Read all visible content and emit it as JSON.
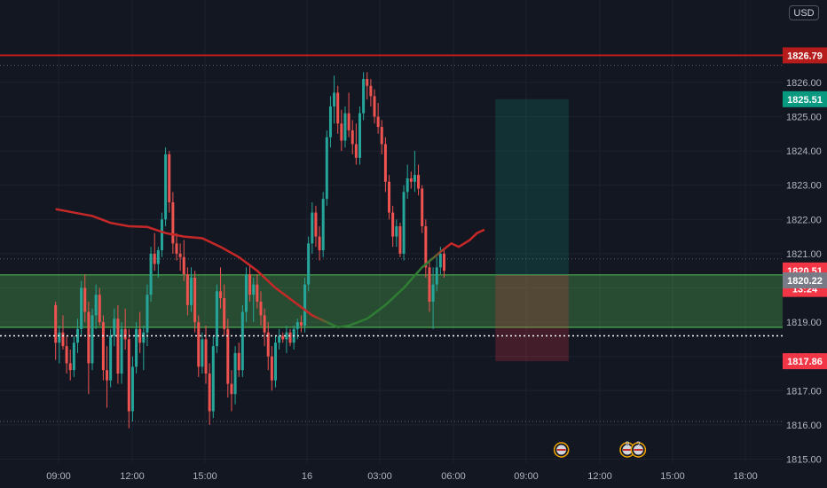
{
  "currency": "USD",
  "chart_data": {
    "type": "candlestick",
    "ylim": [
      1814.9,
      1827.1
    ],
    "y_ticks": [
      "1815.00",
      "1816.00",
      "1817.00",
      "1818.00",
      "1819.00",
      "1820.00",
      "1821.00",
      "1822.00",
      "1823.00",
      "1824.00",
      "1825.00",
      "1826.00"
    ],
    "x_ticks": [
      "09:00",
      "12:00",
      "15:00",
      "16",
      "03:00",
      "06:00",
      "09:00",
      "12:00",
      "15:00",
      "18:00"
    ],
    "price_tags": [
      {
        "value": 1826.79,
        "label": "1826.79",
        "color": "#b71c1c",
        "line": true
      },
      {
        "value": 1825.51,
        "label": "1825.51",
        "color": "#089981",
        "line": false
      },
      {
        "value": 1820.51,
        "label": "1820.51",
        "color": "#f23645",
        "line": false
      },
      {
        "value": 1819.97,
        "label": "13:24",
        "color": "#f23645",
        "line": false
      },
      {
        "value": 1820.22,
        "label": "1820.22",
        "color": "#787b86",
        "line": false
      },
      {
        "value": 1817.86,
        "label": "1817.86",
        "color": "#f23645",
        "line": false
      }
    ],
    "demand_zone": {
      "from": 1818.85,
      "to": 1820.38,
      "color": "#4caf50"
    },
    "dotted_level": 1818.6,
    "position": {
      "entry": 1820.38,
      "target": 1825.51,
      "stop": 1817.86,
      "x_start": 110,
      "x_end": 130
    },
    "moving_average": [
      [
        -10,
        1822.3
      ],
      [
        0,
        1822.1
      ],
      [
        5,
        1821.9
      ],
      [
        10,
        1821.8
      ],
      [
        15,
        1821.78
      ],
      [
        20,
        1821.6
      ],
      [
        25,
        1821.5
      ],
      [
        30,
        1821.45
      ],
      [
        35,
        1821.2
      ],
      [
        40,
        1820.9
      ],
      [
        45,
        1820.5
      ],
      [
        50,
        1820.0
      ],
      [
        55,
        1819.6
      ],
      [
        60,
        1819.2
      ],
      [
        65,
        1818.95
      ],
      [
        67,
        1818.85
      ],
      [
        70,
        1818.9
      ],
      [
        75,
        1819.1
      ],
      [
        80,
        1819.5
      ],
      [
        85,
        1820.0
      ],
      [
        90,
        1820.6
      ],
      [
        95,
        1821.05
      ],
      [
        98,
        1821.3
      ],
      [
        100,
        1821.2
      ],
      [
        103,
        1821.4
      ],
      [
        105,
        1821.6
      ],
      [
        107,
        1821.7
      ]
    ],
    "candles": [
      [
        -10,
        1819.5,
        1819.6,
        1817.9,
        1818.4
      ],
      [
        -9,
        1818.4,
        1818.9,
        1817.8,
        1818.7
      ],
      [
        -8,
        1818.7,
        1819.2,
        1818.2,
        1818.3
      ],
      [
        -7,
        1818.3,
        1818.6,
        1817.5,
        1817.8
      ],
      [
        -6,
        1817.8,
        1818.2,
        1817.3,
        1817.6
      ],
      [
        -5,
        1817.6,
        1818.6,
        1817.4,
        1818.4
      ],
      [
        -4,
        1818.4,
        1819.1,
        1818.1,
        1818.8
      ],
      [
        -3,
        1818.8,
        1820.2,
        1818.6,
        1820.0
      ],
      [
        -2,
        1820.0,
        1820.4,
        1819.0,
        1819.3
      ],
      [
        -1,
        1819.3,
        1819.6,
        1816.9,
        1817.8
      ],
      [
        0,
        1817.8,
        1819.4,
        1817.6,
        1819.2
      ],
      [
        1,
        1819.2,
        1820.1,
        1818.8,
        1819.8
      ],
      [
        2,
        1819.8,
        1820.0,
        1818.9,
        1819.0
      ],
      [
        3,
        1819.0,
        1819.2,
        1817.3,
        1817.6
      ],
      [
        4,
        1817.6,
        1818.3,
        1816.5,
        1817.3
      ],
      [
        5,
        1817.3,
        1818.8,
        1817.1,
        1818.6
      ],
      [
        6,
        1818.6,
        1819.4,
        1818.3,
        1819.1
      ],
      [
        7,
        1819.1,
        1819.5,
        1817.2,
        1817.5
      ],
      [
        8,
        1817.5,
        1819.0,
        1817.2,
        1818.8
      ],
      [
        9,
        1818.8,
        1819.4,
        1818.2,
        1818.5
      ],
      [
        10,
        1818.5,
        1818.8,
        1815.9,
        1816.4
      ],
      [
        11,
        1816.4,
        1818.0,
        1816.1,
        1817.7
      ],
      [
        12,
        1817.7,
        1819.0,
        1817.5,
        1818.8
      ],
      [
        13,
        1818.8,
        1819.3,
        1818.1,
        1818.4
      ],
      [
        14,
        1818.4,
        1818.9,
        1817.6,
        1818.7
      ],
      [
        15,
        1818.7,
        1820.1,
        1818.3,
        1819.8
      ],
      [
        16,
        1819.8,
        1821.2,
        1819.6,
        1821.0
      ],
      [
        17,
        1821.0,
        1821.6,
        1820.5,
        1820.7
      ],
      [
        18,
        1820.7,
        1821.2,
        1820.3,
        1821.1
      ],
      [
        19,
        1821.1,
        1822.2,
        1820.9,
        1822.0
      ],
      [
        20,
        1822.0,
        1824.1,
        1821.8,
        1823.9
      ],
      [
        21,
        1823.9,
        1824.0,
        1822.2,
        1822.5
      ],
      [
        22,
        1822.5,
        1822.8,
        1821.0,
        1821.3
      ],
      [
        23,
        1821.3,
        1821.6,
        1820.8,
        1821.0
      ],
      [
        24,
        1821.0,
        1821.3,
        1820.5,
        1820.9
      ],
      [
        25,
        1820.9,
        1821.4,
        1820.2,
        1820.4
      ],
      [
        26,
        1820.4,
        1820.6,
        1819.2,
        1819.5
      ],
      [
        27,
        1819.5,
        1820.6,
        1819.3,
        1820.3
      ],
      [
        28,
        1820.3,
        1820.5,
        1818.7,
        1819.0
      ],
      [
        29,
        1819.0,
        1819.2,
        1817.4,
        1817.7
      ],
      [
        30,
        1817.7,
        1818.7,
        1817.5,
        1818.5
      ],
      [
        31,
        1818.5,
        1818.9,
        1817.2,
        1817.5
      ],
      [
        32,
        1817.5,
        1817.8,
        1816.0,
        1816.4
      ],
      [
        33,
        1816.4,
        1818.6,
        1816.2,
        1818.3
      ],
      [
        34,
        1818.3,
        1820.1,
        1818.1,
        1819.9
      ],
      [
        35,
        1819.9,
        1820.6,
        1819.4,
        1819.7
      ],
      [
        36,
        1819.7,
        1820.1,
        1818.6,
        1818.8
      ],
      [
        37,
        1818.8,
        1819.1,
        1816.8,
        1817.2
      ],
      [
        38,
        1817.2,
        1817.6,
        1816.4,
        1816.9
      ],
      [
        39,
        1816.9,
        1818.3,
        1816.6,
        1818.1
      ],
      [
        40,
        1818.1,
        1818.4,
        1817.4,
        1817.6
      ],
      [
        41,
        1817.6,
        1819.5,
        1817.4,
        1819.3
      ],
      [
        42,
        1819.3,
        1820.6,
        1819.0,
        1820.4
      ],
      [
        43,
        1820.4,
        1820.7,
        1819.6,
        1819.8
      ],
      [
        44,
        1819.8,
        1820.3,
        1819.0,
        1820.1
      ],
      [
        45,
        1820.1,
        1820.4,
        1819.4,
        1819.6
      ],
      [
        46,
        1819.6,
        1819.9,
        1818.9,
        1819.2
      ],
      [
        47,
        1819.2,
        1819.4,
        1818.3,
        1818.7
      ],
      [
        48,
        1818.7,
        1819.0,
        1817.6,
        1818.0
      ],
      [
        49,
        1818.0,
        1818.3,
        1817.0,
        1817.3
      ],
      [
        50,
        1817.3,
        1818.6,
        1817.1,
        1818.4
      ],
      [
        51,
        1818.4,
        1818.8,
        1818.2,
        1818.6
      ],
      [
        52,
        1818.6,
        1818.7,
        1818.4,
        1818.5
      ],
      [
        53,
        1818.5,
        1818.9,
        1818.1,
        1818.7
      ],
      [
        54,
        1818.7,
        1818.8,
        1818.3,
        1818.4
      ],
      [
        55,
        1818.4,
        1818.9,
        1818.2,
        1818.8
      ],
      [
        56,
        1818.8,
        1819.1,
        1818.5,
        1819.0
      ],
      [
        57,
        1819.0,
        1819.2,
        1818.7,
        1818.9
      ],
      [
        58,
        1818.9,
        1820.3,
        1818.7,
        1820.1
      ],
      [
        59,
        1820.1,
        1821.5,
        1819.9,
        1821.3
      ],
      [
        60,
        1821.3,
        1822.5,
        1821.0,
        1822.2
      ],
      [
        61,
        1822.2,
        1822.4,
        1821.2,
        1821.5
      ],
      [
        62,
        1821.5,
        1821.8,
        1820.8,
        1821.1
      ],
      [
        63,
        1821.1,
        1822.8,
        1820.9,
        1822.6
      ],
      [
        64,
        1822.6,
        1824.6,
        1822.4,
        1824.4
      ],
      [
        65,
        1824.4,
        1825.6,
        1824.1,
        1825.3
      ],
      [
        66,
        1825.3,
        1826.2,
        1824.8,
        1825.7
      ],
      [
        67,
        1825.7,
        1825.9,
        1824.5,
        1824.8
      ],
      [
        68,
        1824.8,
        1825.2,
        1824.0,
        1824.3
      ],
      [
        69,
        1824.3,
        1825.3,
        1824.1,
        1825.1
      ],
      [
        70,
        1825.1,
        1825.7,
        1824.4,
        1824.6
      ],
      [
        71,
        1824.6,
        1824.9,
        1823.9,
        1824.2
      ],
      [
        72,
        1824.2,
        1824.8,
        1823.6,
        1823.8
      ],
      [
        73,
        1823.8,
        1825.3,
        1823.6,
        1825.1
      ],
      [
        74,
        1825.1,
        1826.3,
        1824.9,
        1826.1
      ],
      [
        75,
        1826.1,
        1826.3,
        1825.5,
        1825.9
      ],
      [
        76,
        1825.9,
        1826.1,
        1825.3,
        1825.6
      ],
      [
        77,
        1825.6,
        1825.8,
        1824.8,
        1825.0
      ],
      [
        78,
        1825.0,
        1825.4,
        1824.5,
        1824.7
      ],
      [
        79,
        1824.7,
        1824.9,
        1823.9,
        1824.2
      ],
      [
        80,
        1824.2,
        1824.4,
        1822.8,
        1823.1
      ],
      [
        81,
        1823.1,
        1823.3,
        1822.0,
        1822.2
      ],
      [
        82,
        1822.2,
        1822.4,
        1821.2,
        1821.5
      ],
      [
        83,
        1821.5,
        1822.0,
        1821.2,
        1821.8
      ],
      [
        84,
        1821.8,
        1821.9,
        1820.9,
        1821.0
      ],
      [
        85,
        1821.0,
        1823.0,
        1820.8,
        1822.8
      ],
      [
        86,
        1822.8,
        1823.6,
        1822.6,
        1823.2
      ],
      [
        87,
        1823.2,
        1823.4,
        1822.9,
        1823.1
      ],
      [
        88,
        1823.1,
        1824.0,
        1822.8,
        1823.3
      ],
      [
        89,
        1823.3,
        1823.6,
        1822.7,
        1822.9
      ],
      [
        90,
        1822.9,
        1823.0,
        1821.6,
        1821.8
      ],
      [
        91,
        1821.8,
        1822.0,
        1820.3,
        1820.6
      ],
      [
        92,
        1820.6,
        1820.8,
        1819.3,
        1819.6
      ],
      [
        93,
        1819.6,
        1820.6,
        1818.8,
        1820.1
      ],
      [
        94,
        1820.1,
        1820.9,
        1819.9,
        1820.6
      ],
      [
        95,
        1820.6,
        1821.2,
        1820.4,
        1821.0
      ],
      [
        96,
        1821.0,
        1821.1,
        1820.3,
        1820.5
      ]
    ],
    "events": [
      {
        "x_index": 128,
        "label": ""
      },
      {
        "x_index": 146,
        "label": "8"
      },
      {
        "x_index": 149,
        "label": "2"
      }
    ]
  }
}
